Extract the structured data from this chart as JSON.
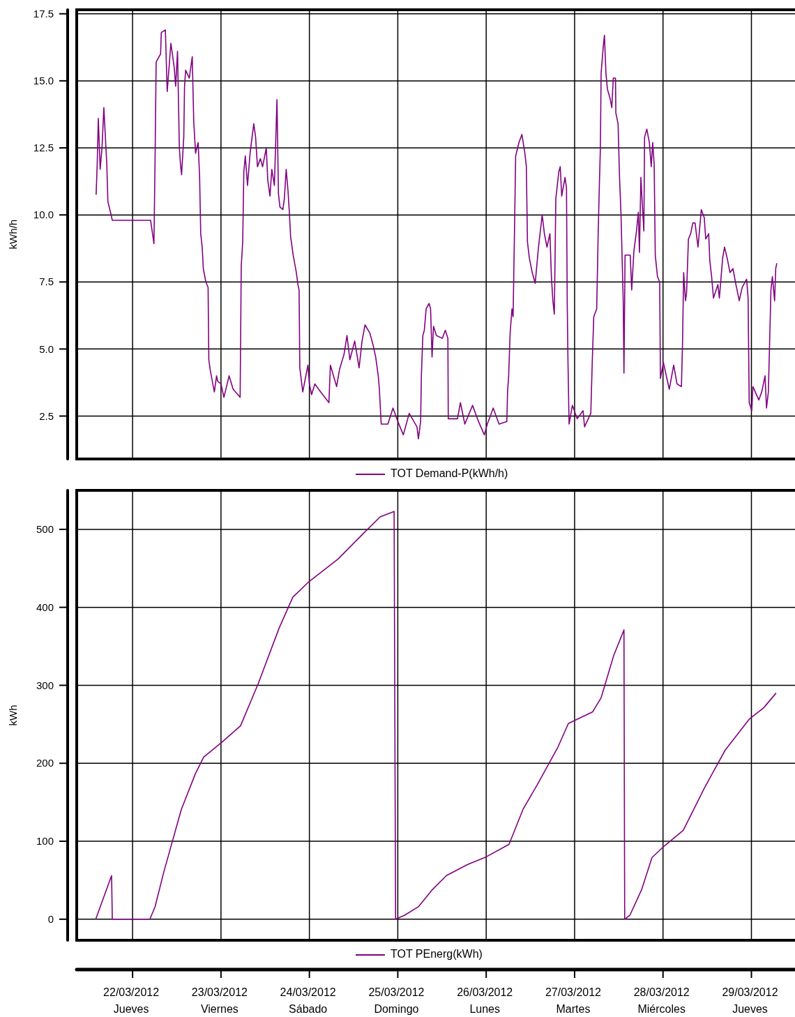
{
  "chart_data": [
    {
      "type": "line",
      "ylabel": "kWh/h",
      "legend": "bottom",
      "grid": true,
      "tick_labels": "y",
      "xlim": [
        "2012-03-21T08:50",
        "2012-03-29T11:50"
      ],
      "xticks": [
        {
          "value": "2012-03-22",
          "label": null
        },
        {
          "value": "2012-03-23",
          "label": null
        },
        {
          "value": "2012-03-24",
          "label": null
        },
        {
          "value": "2012-03-25",
          "label": null
        },
        {
          "value": "2012-03-26",
          "label": null
        },
        {
          "value": "2012-03-27",
          "label": null
        },
        {
          "value": "2012-03-28",
          "label": null
        },
        {
          "value": "2012-03-29",
          "label": null
        }
      ],
      "ylim": [
        0.9,
        17.65
      ],
      "yticks": [
        2.5,
        {
          "value": 5,
          "label": "5.0"
        },
        7.5,
        {
          "value": 10,
          "label": "10.0"
        },
        12.5,
        {
          "value": 15,
          "label": "15.0"
        },
        17.5
      ],
      "series": [
        {
          "name": "TOT Demand-P(kWh/h)",
          "color": "#800080",
          "x": [
            "2012-03-21T14:06",
            "2012-03-21T14:24",
            "2012-03-21T14:42",
            "2012-03-21T15:12",
            "2012-03-21T15:42",
            "2012-03-21T16:12",
            "2012-03-21T17:00",
            "2012-03-21T17:18",
            "2012-03-21T18:00",
            "2012-03-21T18:30",
            "2012-03-22T04:54",
            "2012-03-22T05:48",
            "2012-03-22T06:06",
            "2012-03-22T06:24",
            "2012-03-22T07:36",
            "2012-03-22T07:48",
            "2012-03-22T08:54",
            "2012-03-22T09:24",
            "2012-03-22T10:24",
            "2012-03-22T11:18",
            "2012-03-22T11:42",
            "2012-03-22T12:12",
            "2012-03-22T12:42",
            "2012-03-22T13:00",
            "2012-03-22T13:18",
            "2012-03-22T13:54",
            "2012-03-22T14:06",
            "2012-03-22T14:24",
            "2012-03-22T15:24",
            "2012-03-22T16:12",
            "2012-03-22T16:36",
            "2012-03-22T17:06",
            "2012-03-22T17:48",
            "2012-03-22T18:12",
            "2012-03-22T18:30",
            "2012-03-22T18:54",
            "2012-03-22T19:12",
            "2012-03-22T19:54",
            "2012-03-22T20:30",
            "2012-03-22T20:42",
            "2012-03-22T21:06",
            "2012-03-22T22:12",
            "2012-03-22T22:48",
            "2012-03-22T23:06",
            "2012-03-23T00:00",
            "2012-03-23T00:48",
            "2012-03-23T02:12",
            "2012-03-23T03:18",
            "2012-03-23T05:12",
            "2012-03-23T05:30",
            "2012-03-23T05:54",
            "2012-03-23T06:12",
            "2012-03-23T06:36",
            "2012-03-23T07:12",
            "2012-03-23T07:54",
            "2012-03-23T08:54",
            "2012-03-23T09:24",
            "2012-03-23T09:54",
            "2012-03-23T10:42",
            "2012-03-23T11:18",
            "2012-03-23T12:18",
            "2012-03-23T12:42",
            "2012-03-23T13:18",
            "2012-03-23T13:48",
            "2012-03-23T14:30",
            "2012-03-23T15:12",
            "2012-03-23T15:36",
            "2012-03-23T16:00",
            "2012-03-23T16:48",
            "2012-03-23T17:12",
            "2012-03-23T17:42",
            "2012-03-23T18:12",
            "2012-03-23T18:36",
            "2012-03-23T18:54",
            "2012-03-23T19:36",
            "2012-03-23T20:24",
            "2012-03-23T20:54",
            "2012-03-23T21:12",
            "2012-03-23T21:24",
            "2012-03-23T22:12",
            "2012-03-23T23:36",
            "2012-03-24T00:00",
            "2012-03-24T00:36",
            "2012-03-24T01:30",
            "2012-03-24T02:30",
            "2012-03-24T05:18",
            "2012-03-24T05:42",
            "2012-03-24T07:24",
            "2012-03-24T08:12",
            "2012-03-24T09:24",
            "2012-03-24T10:12",
            "2012-03-24T11:00",
            "2012-03-24T12:18",
            "2012-03-24T13:30",
            "2012-03-24T14:18",
            "2012-03-24T15:06",
            "2012-03-24T16:24",
            "2012-03-24T17:12",
            "2012-03-24T18:00",
            "2012-03-24T18:42",
            "2012-03-24T19:00",
            "2012-03-24T19:30",
            "2012-03-24T21:18",
            "2012-03-24T22:42",
            "2012-03-25T00:00",
            "2012-03-25T01:30",
            "2012-03-25T03:06",
            "2012-03-25T05:12",
            "2012-03-25T05:36",
            "2012-03-25T06:12",
            "2012-03-25T06:24",
            "2012-03-25T06:48",
            "2012-03-25T07:12",
            "2012-03-25T07:42",
            "2012-03-25T08:30",
            "2012-03-25T08:54",
            "2012-03-25T09:18",
            "2012-03-25T09:42",
            "2012-03-25T10:30",
            "2012-03-25T12:06",
            "2012-03-25T12:54",
            "2012-03-25T13:36",
            "2012-03-25T13:42",
            "2012-03-25T16:12",
            "2012-03-25T17:00",
            "2012-03-25T18:12",
            "2012-03-25T20:18",
            "2012-03-25T21:54",
            "2012-03-25T23:30",
            "2012-03-26T00:18",
            "2012-03-26T01:54",
            "2012-03-26T03:30",
            "2012-03-26T05:36",
            "2012-03-26T05:48",
            "2012-03-26T06:06",
            "2012-03-26T06:30",
            "2012-03-26T07:00",
            "2012-03-26T07:18",
            "2012-03-26T07:36",
            "2012-03-26T08:00",
            "2012-03-26T08:54",
            "2012-03-26T09:42",
            "2012-03-26T10:30",
            "2012-03-26T10:54",
            "2012-03-26T11:12",
            "2012-03-26T11:42",
            "2012-03-26T12:30",
            "2012-03-26T13:18",
            "2012-03-26T14:12",
            "2012-03-26T15:12",
            "2012-03-26T15:48",
            "2012-03-26T16:30",
            "2012-03-26T17:18",
            "2012-03-26T17:42",
            "2012-03-26T18:06",
            "2012-03-26T18:30",
            "2012-03-26T18:54",
            "2012-03-26T19:18",
            "2012-03-26T19:42",
            "2012-03-26T20:06",
            "2012-03-26T20:30",
            "2012-03-26T21:24",
            "2012-03-26T21:48",
            "2012-03-26T22:00",
            "2012-03-26T22:12",
            "2012-03-26T22:30",
            "2012-03-26T23:24",
            "2012-03-27T00:42",
            "2012-03-27T02:18",
            "2012-03-27T02:42",
            "2012-03-27T04:24",
            "2012-03-27T04:48",
            "2012-03-27T05:12",
            "2012-03-27T06:00",
            "2012-03-27T06:24",
            "2012-03-27T06:42",
            "2012-03-27T07:00",
            "2012-03-27T07:12",
            "2012-03-27T07:48",
            "2012-03-27T08:06",
            "2012-03-27T08:30",
            "2012-03-27T08:54",
            "2012-03-27T09:42",
            "2012-03-27T10:06",
            "2012-03-27T10:30",
            "2012-03-27T11:06",
            "2012-03-27T11:12",
            "2012-03-27T11:48",
            "2012-03-27T12:12",
            "2012-03-27T12:36",
            "2012-03-27T13:12",
            "2012-03-27T13:24",
            "2012-03-27T13:42",
            "2012-03-27T15:06",
            "2012-03-27T15:30",
            "2012-03-27T16:06",
            "2012-03-27T16:48",
            "2012-03-27T17:18",
            "2012-03-27T17:36",
            "2012-03-27T18:00",
            "2012-03-27T18:24",
            "2012-03-27T18:48",
            "2012-03-27T19:00",
            "2012-03-27T19:36",
            "2012-03-27T20:18",
            "2012-03-27T20:48",
            "2012-03-27T21:12",
            "2012-03-27T21:36",
            "2012-03-27T21:54",
            "2012-03-27T22:30",
            "2012-03-27T23:06",
            "2012-03-27T23:18",
            "2012-03-28T00:06",
            "2012-03-28T00:30",
            "2012-03-28T01:42",
            "2012-03-28T02:54",
            "2012-03-28T03:48",
            "2012-03-28T05:00",
            "2012-03-28T05:18",
            "2012-03-28T05:36",
            "2012-03-28T06:06",
            "2012-03-28T06:24",
            "2012-03-28T06:54",
            "2012-03-28T07:30",
            "2012-03-28T08:06",
            "2012-03-28T08:42",
            "2012-03-28T09:30",
            "2012-03-28T10:24",
            "2012-03-28T11:12",
            "2012-03-28T11:36",
            "2012-03-28T12:24",
            "2012-03-28T12:42",
            "2012-03-28T13:12",
            "2012-03-28T13:42",
            "2012-03-28T14:54",
            "2012-03-28T15:18",
            "2012-03-28T16:12",
            "2012-03-28T16:42",
            "2012-03-28T17:24",
            "2012-03-28T18:12",
            "2012-03-28T19:00",
            "2012-03-28T19:48",
            "2012-03-28T20:42",
            "2012-03-28T21:30",
            "2012-03-28T22:42",
            "2012-03-28T23:06",
            "2012-03-28T23:24",
            "2012-03-29T00:06",
            "2012-03-29T00:24",
            "2012-03-29T02:00",
            "2012-03-29T02:48",
            "2012-03-29T03:42",
            "2012-03-29T04:06",
            "2012-03-29T04:36",
            "2012-03-29T04:54",
            "2012-03-29T05:18",
            "2012-03-29T05:42",
            "2012-03-29T06:18",
            "2012-03-29T06:36",
            "2012-03-29T06:54"
          ],
          "values": [
            10.75,
            11.9,
            13.6,
            11.7,
            12.5,
            14.0,
            11.9,
            10.5,
            10.1,
            9.8,
            9.8,
            8.93,
            12.0,
            15.7,
            16.0,
            16.8,
            16.9,
            14.6,
            16.4,
            15.5,
            14.8,
            16.1,
            12.5,
            11.9,
            11.5,
            12.9,
            14.75,
            15.4,
            15.1,
            15.9,
            13.5,
            12.3,
            12.7,
            11.4,
            9.3,
            8.8,
            8.0,
            7.5,
            7.3,
            4.6,
            4.2,
            3.4,
            4.0,
            3.8,
            3.7,
            3.2,
            4.0,
            3.5,
            3.2,
            8.1,
            9.0,
            11.6,
            12.2,
            11.1,
            12.3,
            13.4,
            12.9,
            11.8,
            12.1,
            11.8,
            12.5,
            11.3,
            10.7,
            11.7,
            11.1,
            14.3,
            10.8,
            10.3,
            10.2,
            10.6,
            11.7,
            10.9,
            10.0,
            9.2,
            8.5,
            7.9,
            7.4,
            7.2,
            4.3,
            3.4,
            4.4,
            3.7,
            3.3,
            3.7,
            3.5,
            3.0,
            4.4,
            3.6,
            4.25,
            4.8,
            5.5,
            4.6,
            5.3,
            4.3,
            5.3,
            5.9,
            5.6,
            5.2,
            4.7,
            4.0,
            3.5,
            2.2,
            2.2,
            2.8,
            2.3,
            1.8,
            2.6,
            2.1,
            1.65,
            2.3,
            4.0,
            5.5,
            5.7,
            6.5,
            6.7,
            6.5,
            4.7,
            5.85,
            5.5,
            5.4,
            5.7,
            5.4,
            2.4,
            2.4,
            3.0,
            2.2,
            2.9,
            2.3,
            1.8,
            2.2,
            2.8,
            2.2,
            2.3,
            3.4,
            4.0,
            5.6,
            6.5,
            6.2,
            8.7,
            12.2,
            12.7,
            13.0,
            12.3,
            11.8,
            9.0,
            8.4,
            7.85,
            7.45,
            8.8,
            10.0,
            9.3,
            8.8,
            9.3,
            7.7,
            6.8,
            6.3,
            10.6,
            11.1,
            11.6,
            11.8,
            10.7,
            11.4,
            11.0,
            6.7,
            4.55,
            2.2,
            2.9,
            2.4,
            2.7,
            2.1,
            2.6,
            4.55,
            6.2,
            6.5,
            9.3,
            11.0,
            12.5,
            15.3,
            16.3,
            16.7,
            15.3,
            14.7,
            14.3,
            14.0,
            15.1,
            15.1,
            13.8,
            13.4,
            11.4,
            10.0,
            6.8,
            4.1,
            8.5,
            8.5,
            7.2,
            8.65,
            9.4,
            10.1,
            8.6,
            11.4,
            10.35,
            9.4,
            12.9,
            13.2,
            12.7,
            11.8,
            12.7,
            11.9,
            8.5,
            7.7,
            7.5,
            3.9,
            4.5,
            4.25,
            3.5,
            4.4,
            3.7,
            3.6,
            5.2,
            7.85,
            6.8,
            7.1,
            9.1,
            9.3,
            9.7,
            9.7,
            8.8,
            10.2,
            9.9,
            9.1,
            9.3,
            8.3,
            7.7,
            6.9,
            7.4,
            6.9,
            8.4,
            8.8,
            8.4,
            7.85,
            8.0,
            7.4,
            6.8,
            7.3,
            7.6,
            6.9,
            3.0,
            2.7,
            3.6,
            3.1,
            3.4,
            4.0,
            2.8,
            3.4,
            5.0,
            7.2,
            7.7,
            6.8,
            8.0,
            8.2
          ]
        }
      ]
    },
    {
      "type": "line",
      "ylabel": "kWh",
      "legend": "bottom",
      "grid": true,
      "xlim": [
        "2012-03-21T08:50",
        "2012-03-29T11:50"
      ],
      "xticks": [
        {
          "value": "2012-03-22",
          "label": "22/03/2012\nJueves"
        },
        {
          "value": "2012-03-23",
          "label": "23/03/2012\nViernes"
        },
        {
          "value": "2012-03-24",
          "label": "24/03/2012\nSábado"
        },
        {
          "value": "2012-03-25",
          "label": "25/03/2012\nDomingo"
        },
        {
          "value": "2012-03-26",
          "label": "26/03/2012\nLunes"
        },
        {
          "value": "2012-03-27",
          "label": "27/03/2012\nMartes"
        },
        {
          "value": "2012-03-28",
          "label": "28/03/2012\nMiércoles"
        },
        {
          "value": "2012-03-29",
          "label": "29/03/2012\nJueves"
        }
      ],
      "ylim": [
        -27,
        550
      ],
      "yticks": [
        0,
        100,
        200,
        300,
        400,
        500
      ],
      "series": [
        {
          "name": "TOT PEnerg(kWh)",
          "color": "#800080",
          "x": [
            "2012-03-21T14:00",
            "2012-03-21T18:18",
            "2012-03-21T18:30",
            "2012-03-22T04:42",
            "2012-03-22T06:06",
            "2012-03-22T08:30",
            "2012-03-22T13:15",
            "2012-03-22T17:00",
            "2012-03-22T19:18",
            "2012-03-23T00:00",
            "2012-03-23T05:18",
            "2012-03-23T10:06",
            "2012-03-23T15:45",
            "2012-03-23T19:30",
            "2012-03-23T23:54",
            "2012-03-24T07:48",
            "2012-03-24T14:30",
            "2012-03-24T19:12",
            "2012-03-24T23:00",
            "2012-03-24T23:24",
            "2012-03-25T01:48",
            "2012-03-25T05:36",
            "2012-03-25T09:24",
            "2012-03-25T13:12",
            "2012-03-25T18:54",
            "2012-03-26T00:00",
            "2012-03-26T06:12",
            "2012-03-26T10:00",
            "2012-03-26T13:48",
            "2012-03-26T19:30",
            "2012-03-26T22:18",
            "2012-03-27T04:54",
            "2012-03-27T07:12",
            "2012-03-27T10:36",
            "2012-03-27T13:24",
            "2012-03-27T13:36",
            "2012-03-27T15:00",
            "2012-03-27T18:12",
            "2012-03-27T21:00",
            "2012-03-27T23:54",
            "2012-03-28T05:30",
            "2012-03-28T11:12",
            "2012-03-28T16:54",
            "2012-03-28T23:30",
            "2012-03-29T03:18",
            "2012-03-29T06:42"
          ],
          "values": [
            0,
            56,
            0,
            0,
            16,
            61,
            141,
            186,
            208,
            226,
            248,
            302,
            373,
            413,
            433,
            462,
            494,
            516,
            523,
            0,
            5,
            16,
            38,
            56,
            70,
            80,
            96,
            141,
            172,
            221,
            251,
            266,
            284,
            338,
            371,
            0,
            5,
            38,
            79,
            92,
            114,
            168,
            217,
            257,
            271,
            290
          ]
        }
      ]
    }
  ]
}
